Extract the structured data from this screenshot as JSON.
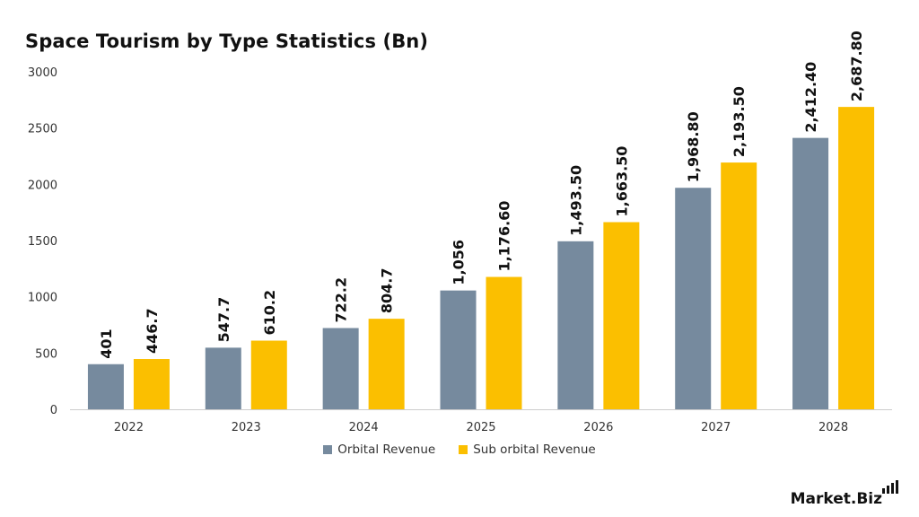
{
  "colors": {
    "orbital": "#768a9e",
    "suborbital": "#fbbf00",
    "axis": "#cccccc"
  },
  "logo": {
    "text": "Market.Biz"
  },
  "chart_data": {
    "type": "bar",
    "title": "Space Tourism by Type Statistics (Bn)",
    "categories": [
      "2022",
      "2023",
      "2024",
      "2025",
      "2026",
      "2027",
      "2028"
    ],
    "ylim": [
      0,
      3000
    ],
    "yticks": [
      "0",
      "500",
      "1000",
      "1500",
      "2000",
      "2500",
      "3000"
    ],
    "grid": false,
    "legend": "bottom",
    "series": [
      {
        "name": "Orbital Revenue",
        "values": [
          401,
          547.7,
          722.2,
          1056,
          1493.5,
          1968.8,
          2412.4
        ],
        "labels": [
          "401",
          "547.7",
          "722.2",
          "1,056",
          "1,493.50",
          "1,968.80",
          "2,412.40"
        ]
      },
      {
        "name": "Sub orbital Revenue",
        "values": [
          446.7,
          610.2,
          804.7,
          1176.6,
          1663.5,
          2193.5,
          2687.8
        ],
        "labels": [
          "446.7",
          "610.2",
          "804.7",
          "1,176.60",
          "1,663.50",
          "2,193.50",
          "2,687.80"
        ]
      }
    ]
  }
}
